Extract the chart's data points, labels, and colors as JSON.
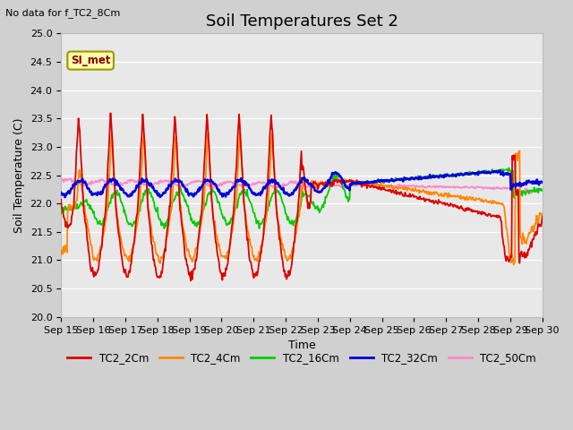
{
  "title": "Soil Temperatures Set 2",
  "subtitle": "No data for f_TC2_8Cm",
  "xlabel": "Time",
  "ylabel": "Soil Temperature (C)",
  "ylim": [
    20.0,
    25.0
  ],
  "yticks": [
    20.0,
    20.5,
    21.0,
    21.5,
    22.0,
    22.5,
    23.0,
    23.5,
    24.0,
    24.5,
    25.0
  ],
  "xtick_labels": [
    "Sep 15",
    "Sep 16",
    "Sep 17",
    "Sep 18",
    "Sep 19",
    "Sep 20",
    "Sep 21",
    "Sep 22",
    "Sep 23",
    "Sep 24",
    "Sep 25",
    "Sep 26",
    "Sep 27",
    "Sep 28",
    "Sep 29",
    "Sep 30"
  ],
  "legend_labels": [
    "TC2_2Cm",
    "TC2_4Cm",
    "TC2_16Cm",
    "TC2_32Cm",
    "TC2_50Cm"
  ],
  "legend_colors": [
    "#dd0000",
    "#ff8800",
    "#00cc00",
    "#0000dd",
    "#ff88cc"
  ],
  "line_widths": [
    1.3,
    1.3,
    1.3,
    1.8,
    1.3
  ],
  "annotation_label": "SI_met",
  "fig_bg": "#d0d0d0",
  "plot_bg": "#e8e8e8",
  "grid_color": "#ffffff",
  "title_fontsize": 13,
  "label_fontsize": 9,
  "tick_fontsize": 8
}
